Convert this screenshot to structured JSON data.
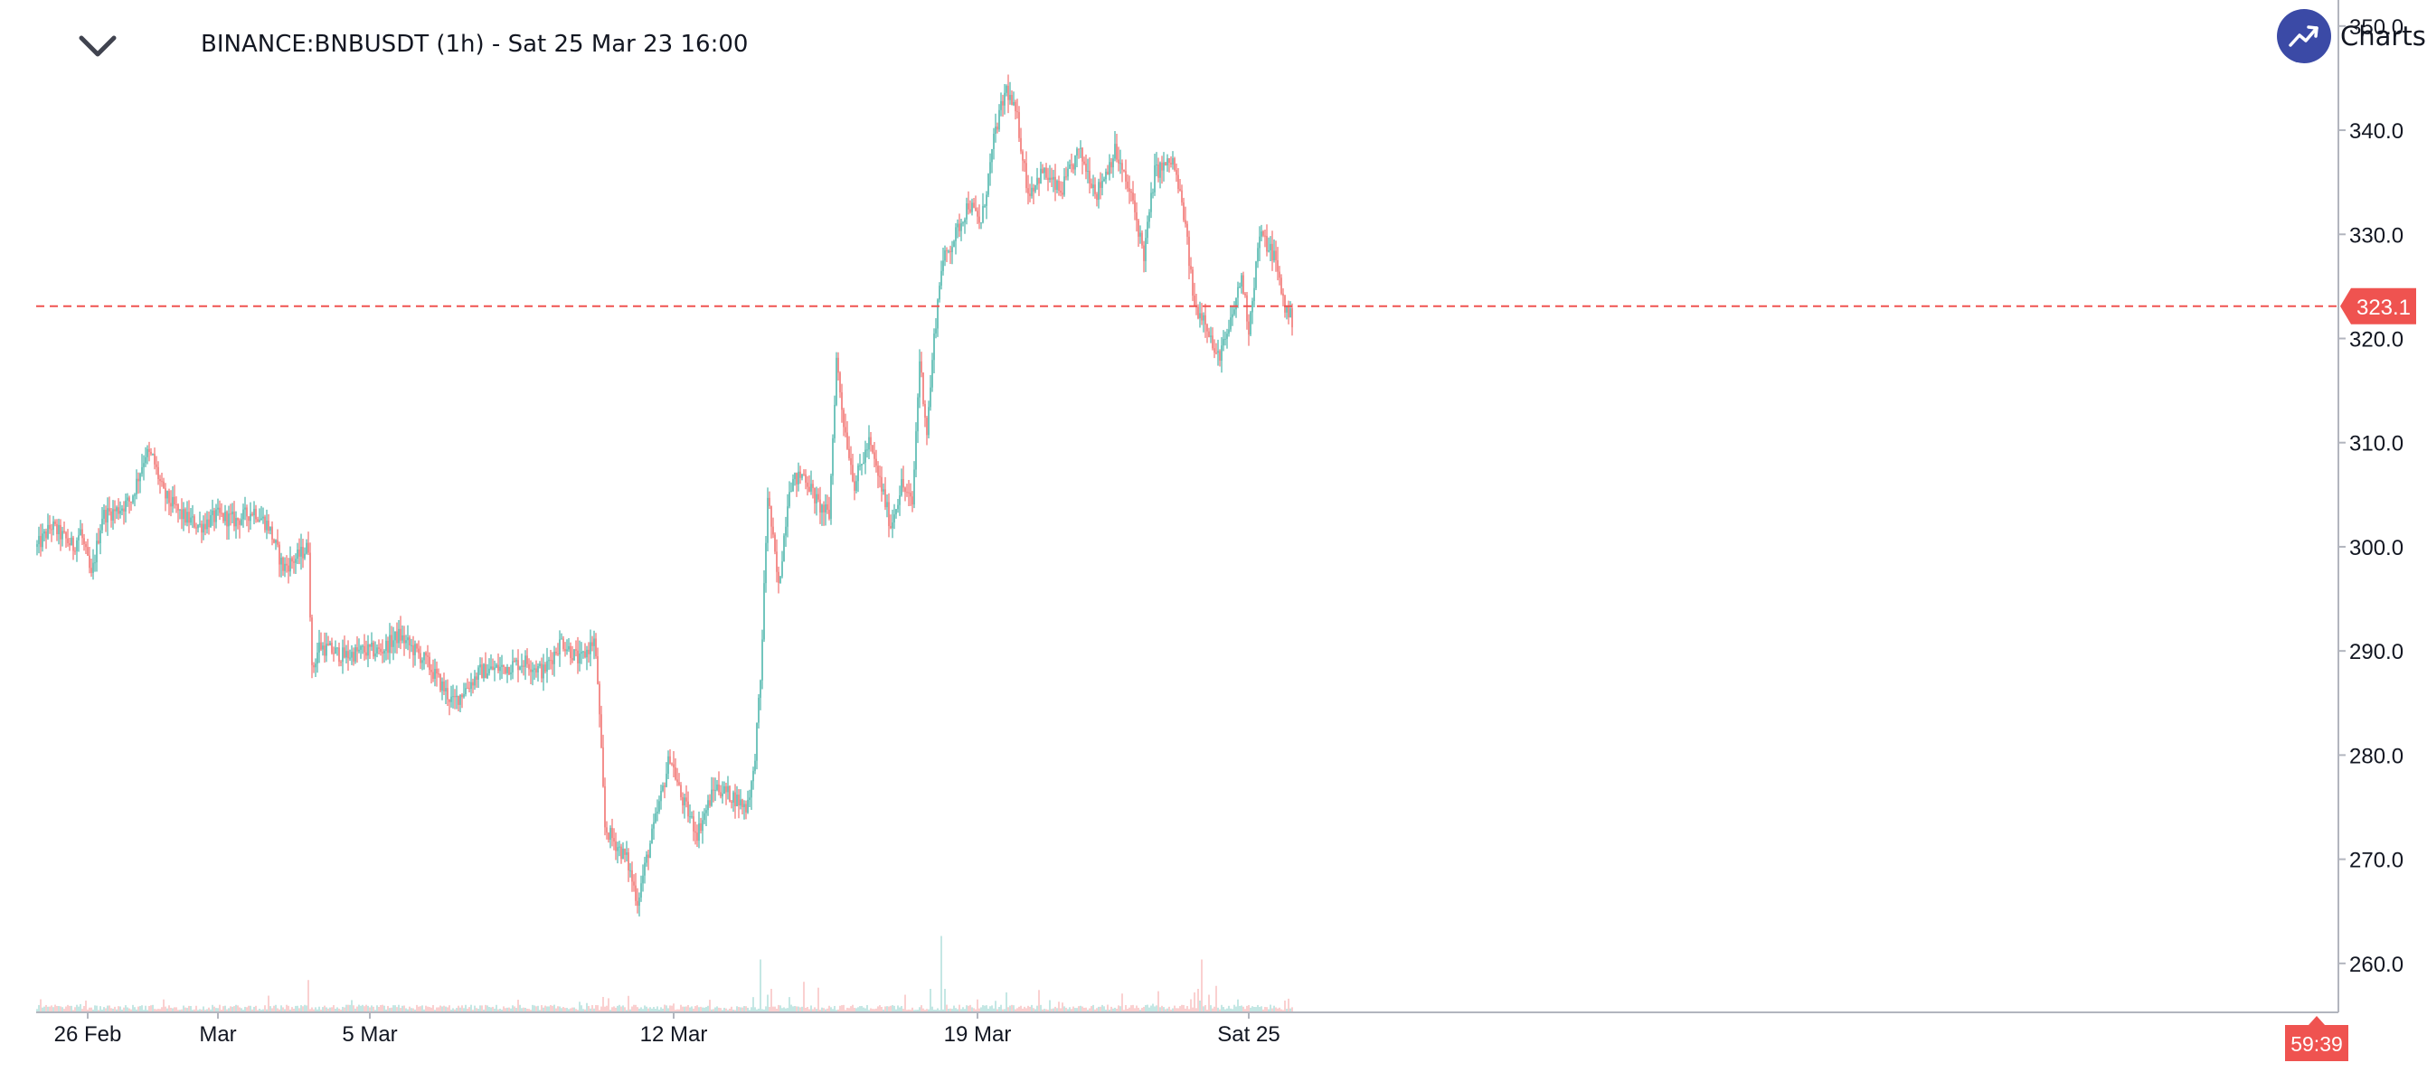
{
  "header": {
    "title": "BINANCE:BNBUSDT (1h) - Sat 25 Mar 23 16:00",
    "brand_label": "Charts"
  },
  "colors": {
    "up": "#26a69a",
    "down": "#ef5350",
    "brand": "#3b4aa6",
    "axis_text": "#131722",
    "axis_line": "#b2b5be"
  },
  "icons": {
    "collapse": "chevron-down-icon",
    "brand": "trend-up-icon"
  },
  "chart_data": {
    "type": "candlestick",
    "symbol": "BINANCE:BNBUSDT",
    "interval": "1h",
    "y_axis": {
      "ylim": [
        255.3,
        352.5
      ],
      "ticks": [
        "260.0",
        "270.0",
        "280.0",
        "290.0",
        "300.0",
        "310.0",
        "320.0",
        "330.0",
        "340.0",
        "350.0"
      ],
      "side": "right"
    },
    "x_axis": {
      "labels": [
        "26 Feb",
        "Mar",
        "5 Mar",
        "12 Mar",
        "19 Mar",
        "Sat 25"
      ],
      "label_bar_index": [
        28,
        100,
        184,
        352,
        520,
        670
      ]
    },
    "bar_count": 695,
    "last_price": {
      "value": 323.1,
      "label": "323.1"
    },
    "countdown": "59:39",
    "close_path": [
      [
        0,
        300.0
      ],
      [
        8,
        302.0
      ],
      [
        20,
        300.0
      ],
      [
        24,
        301.5
      ],
      [
        30,
        297.0
      ],
      [
        36,
        303.0
      ],
      [
        44,
        303.5
      ],
      [
        52,
        304.5
      ],
      [
        60,
        309.0
      ],
      [
        64,
        308.5
      ],
      [
        70,
        305.0
      ],
      [
        80,
        303.0
      ],
      [
        90,
        302.0
      ],
      [
        100,
        303.0
      ],
      [
        110,
        302.5
      ],
      [
        120,
        303.5
      ],
      [
        128,
        302.0
      ],
      [
        136,
        298.0
      ],
      [
        144,
        299.0
      ],
      [
        150,
        300.0
      ],
      [
        152,
        288.0
      ],
      [
        156,
        290.5
      ],
      [
        170,
        289.5
      ],
      [
        180,
        290.0
      ],
      [
        190,
        290.0
      ],
      [
        200,
        291.5
      ],
      [
        215,
        289.0
      ],
      [
        230,
        285.0
      ],
      [
        245,
        288.0
      ],
      [
        260,
        288.5
      ],
      [
        270,
        289.0
      ],
      [
        280,
        288.0
      ],
      [
        290,
        291.0
      ],
      [
        300,
        289.0
      ],
      [
        308,
        291.0
      ],
      [
        310,
        287.0
      ],
      [
        314,
        273.0
      ],
      [
        326,
        270.0
      ],
      [
        332,
        266.0
      ],
      [
        337,
        270.0
      ],
      [
        345,
        276.0
      ],
      [
        350,
        280.0
      ],
      [
        356,
        276.0
      ],
      [
        365,
        272.5
      ],
      [
        375,
        277.0
      ],
      [
        385,
        276.0
      ],
      [
        392,
        275.0
      ],
      [
        396,
        278.0
      ],
      [
        400,
        287.0
      ],
      [
        404,
        305.0
      ],
      [
        410,
        296.0
      ],
      [
        416,
        306.0
      ],
      [
        424,
        307.0
      ],
      [
        432,
        304.0
      ],
      [
        438,
        303.0
      ],
      [
        442,
        318.0
      ],
      [
        446,
        312.0
      ],
      [
        452,
        306.0
      ],
      [
        460,
        310.0
      ],
      [
        468,
        305.0
      ],
      [
        472,
        302.0
      ],
      [
        478,
        306.0
      ],
      [
        484,
        304.0
      ],
      [
        488,
        318.0
      ],
      [
        492,
        311.0
      ],
      [
        496,
        320.0
      ],
      [
        500,
        327.0
      ],
      [
        508,
        330.0
      ],
      [
        515,
        333.0
      ],
      [
        522,
        331.0
      ],
      [
        530,
        340.0
      ],
      [
        536,
        344.0
      ],
      [
        542,
        341.0
      ],
      [
        548,
        334.0
      ],
      [
        556,
        336.0
      ],
      [
        566,
        334.0
      ],
      [
        576,
        338.0
      ],
      [
        586,
        334.0
      ],
      [
        596,
        338.0
      ],
      [
        606,
        333.0
      ],
      [
        612,
        328.0
      ],
      [
        618,
        336.0
      ],
      [
        628,
        337.0
      ],
      [
        634,
        332.0
      ],
      [
        640,
        323.0
      ],
      [
        646,
        322.0
      ],
      [
        652,
        318.0
      ],
      [
        658,
        320.0
      ],
      [
        666,
        326.0
      ],
      [
        670,
        321.0
      ],
      [
        676,
        330.0
      ],
      [
        684,
        328.0
      ],
      [
        690,
        323.0
      ],
      [
        700,
        320.0
      ],
      [
        710,
        318.0
      ],
      [
        716,
        321.0
      ],
      [
        724,
        323.0
      ],
      [
        732,
        323.1
      ]
    ],
    "volume": {
      "unit_note": "relative",
      "baseline": 1.0,
      "spikes": [
        [
          24,
          1.4
        ],
        [
          70,
          2.2
        ],
        [
          150,
          5.5
        ],
        [
          300,
          1.8
        ],
        [
          316,
          2.4
        ],
        [
          352,
          1.5
        ],
        [
          400,
          9.0
        ],
        [
          404,
          3.0
        ],
        [
          406,
          4.0
        ],
        [
          416,
          2.6
        ],
        [
          424,
          5.2
        ],
        [
          432,
          4.2
        ],
        [
          480,
          3.0
        ],
        [
          494,
          4.0
        ],
        [
          500,
          13.0
        ],
        [
          502,
          4.0
        ],
        [
          520,
          2.2
        ],
        [
          536,
          3.4
        ],
        [
          554,
          3.8
        ],
        [
          600,
          3.2
        ],
        [
          620,
          3.6
        ],
        [
          640,
          3.4
        ],
        [
          642,
          4.0
        ],
        [
          644,
          9.0
        ],
        [
          648,
          3.0
        ],
        [
          652,
          4.5
        ],
        [
          664,
          2.2
        ],
        [
          690,
          2.0
        ]
      ]
    }
  }
}
